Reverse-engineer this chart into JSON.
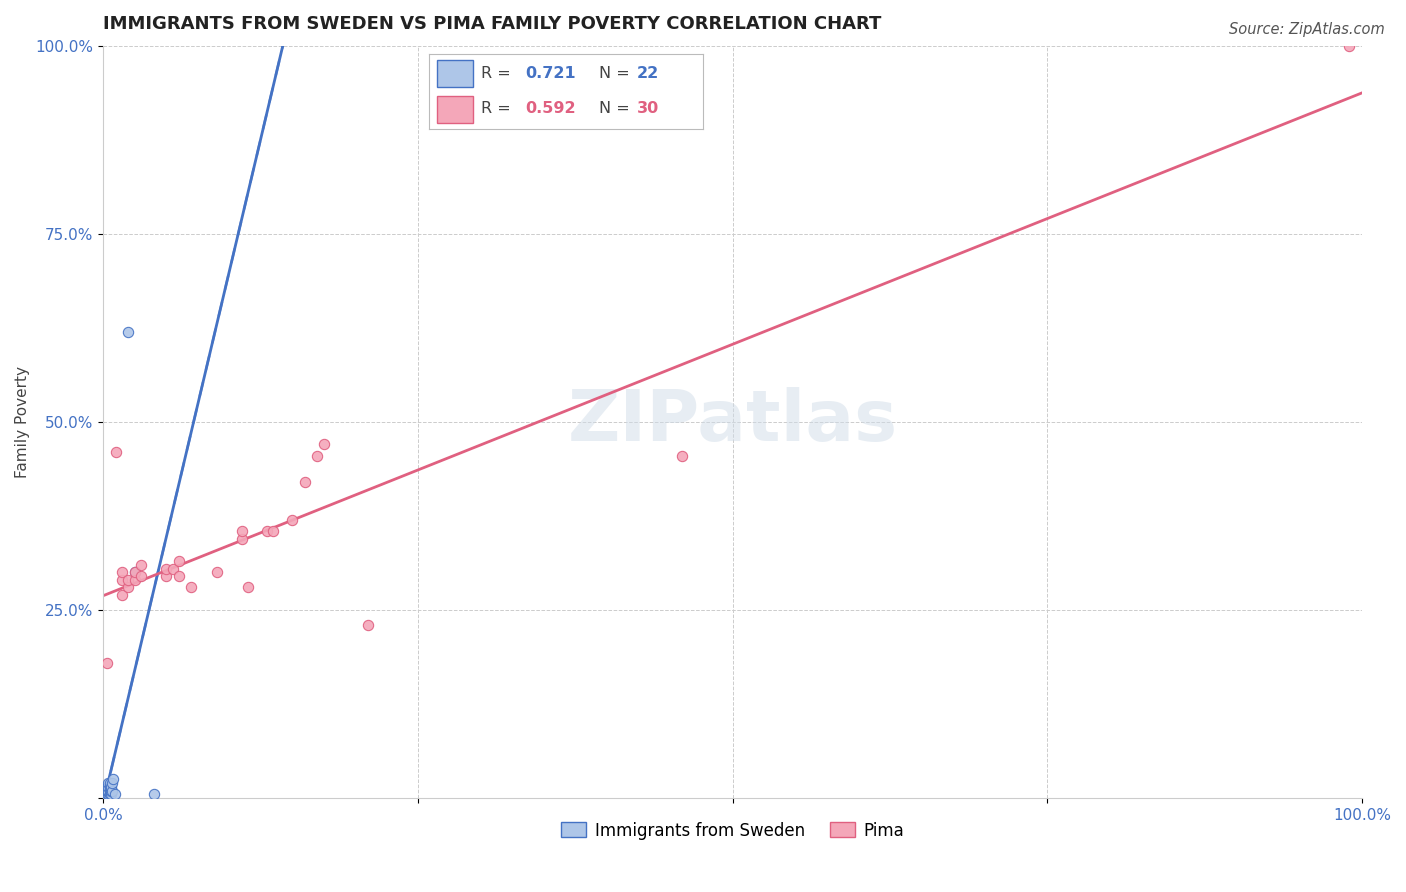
{
  "title": "IMMIGRANTS FROM SWEDEN VS PIMA FAMILY POVERTY CORRELATION CHART",
  "source": "Source: ZipAtlas.com",
  "ylabel_label": "Family Poverty",
  "watermark": "ZIPatlas",
  "xlim": [
    0.0,
    1.0
  ],
  "ylim": [
    0.0,
    1.0
  ],
  "xtick_labels": [
    "0.0%",
    "",
    "",
    "",
    "100.0%"
  ],
  "ytick_labels": [
    "",
    "25.0%",
    "50.0%",
    "75.0%",
    "100.0%"
  ],
  "grid_color": "#cccccc",
  "background_color": "#ffffff",
  "sweden_points": [
    [
      0.003,
      0.005
    ],
    [
      0.003,
      0.01
    ],
    [
      0.003,
      0.015
    ],
    [
      0.004,
      0.005
    ],
    [
      0.004,
      0.008
    ],
    [
      0.004,
      0.01
    ],
    [
      0.004,
      0.015
    ],
    [
      0.004,
      0.02
    ],
    [
      0.005,
      0.005
    ],
    [
      0.005,
      0.01
    ],
    [
      0.005,
      0.015
    ],
    [
      0.005,
      0.02
    ],
    [
      0.006,
      0.005
    ],
    [
      0.006,
      0.01
    ],
    [
      0.006,
      0.015
    ],
    [
      0.007,
      0.01
    ],
    [
      0.007,
      0.02
    ],
    [
      0.008,
      0.025
    ],
    [
      0.009,
      0.005
    ],
    [
      0.025,
      0.3
    ],
    [
      0.04,
      0.005
    ],
    [
      0.02,
      0.62
    ]
  ],
  "pima_points": [
    [
      0.003,
      0.18
    ],
    [
      0.01,
      0.46
    ],
    [
      0.015,
      0.27
    ],
    [
      0.015,
      0.29
    ],
    [
      0.015,
      0.3
    ],
    [
      0.02,
      0.28
    ],
    [
      0.02,
      0.29
    ],
    [
      0.025,
      0.29
    ],
    [
      0.025,
      0.3
    ],
    [
      0.03,
      0.295
    ],
    [
      0.03,
      0.31
    ],
    [
      0.05,
      0.295
    ],
    [
      0.05,
      0.305
    ],
    [
      0.055,
      0.305
    ],
    [
      0.06,
      0.315
    ],
    [
      0.06,
      0.295
    ],
    [
      0.07,
      0.28
    ],
    [
      0.09,
      0.3
    ],
    [
      0.11,
      0.345
    ],
    [
      0.11,
      0.355
    ],
    [
      0.115,
      0.28
    ],
    [
      0.13,
      0.355
    ],
    [
      0.135,
      0.355
    ],
    [
      0.15,
      0.37
    ],
    [
      0.16,
      0.42
    ],
    [
      0.17,
      0.455
    ],
    [
      0.175,
      0.47
    ],
    [
      0.46,
      0.455
    ],
    [
      0.99,
      1.0
    ],
    [
      0.21,
      0.23
    ]
  ],
  "sweden_color": "#aec6e8",
  "pima_color": "#f4a7b9",
  "sweden_line_color": "#4472c4",
  "pima_line_color": "#e06080",
  "legend_R_sweden": "0.721",
  "legend_N_sweden": "22",
  "legend_R_pima": "0.592",
  "legend_N_pima": "30",
  "legend_label_sweden": "Immigrants from Sweden",
  "legend_label_pima": "Pima",
  "legend_color_blue": "#4472c4",
  "legend_color_pink": "#e06080",
  "title_fontsize": 13,
  "axis_label_fontsize": 11,
  "tick_fontsize": 11,
  "source_fontsize": 10.5
}
